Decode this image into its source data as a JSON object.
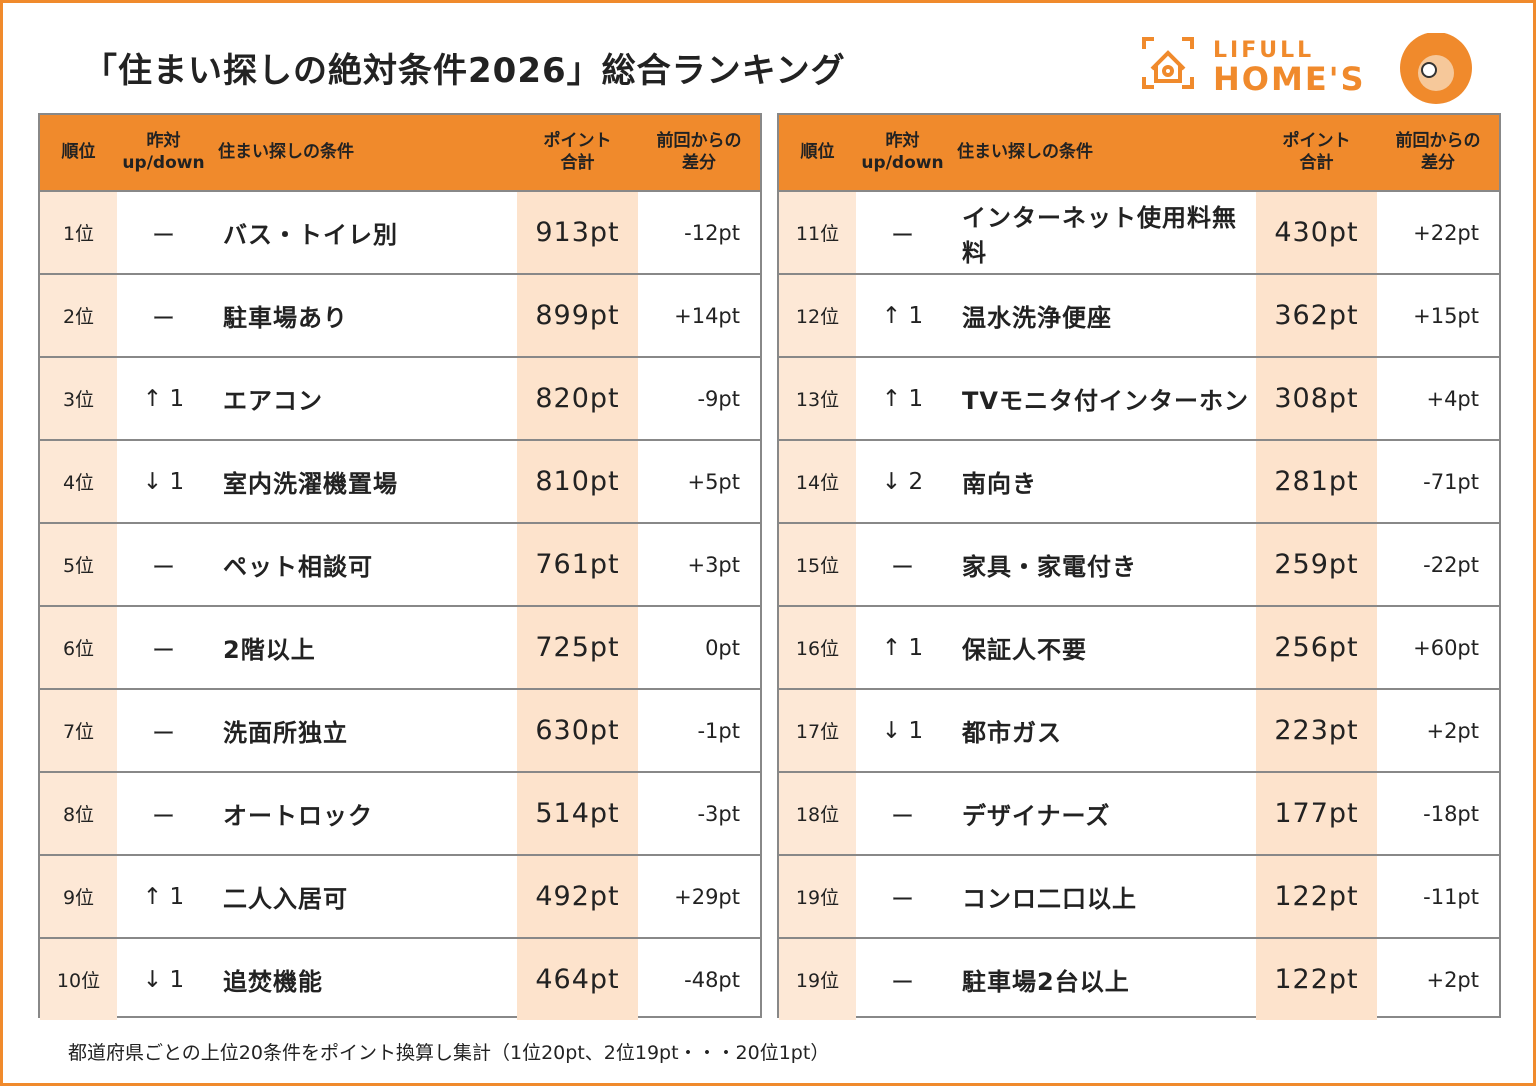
{
  "header": {
    "title": "「住まい探しの絶対条件2026」総合ランキング",
    "logo_top": "LIFULL",
    "logo_bottom": "HOME'S"
  },
  "columns": [
    "順位",
    "昨対\nup/down",
    "住まい探しの条件",
    "ポイント\n合計",
    "前回からの\n差分"
  ],
  "tables": [
    {
      "rows": [
        [
          "1位",
          "ー",
          "バス・トイレ別",
          "913pt",
          "-12pt"
        ],
        [
          "2位",
          "ー",
          "駐車場あり",
          "899pt",
          "+14pt"
        ],
        [
          "3位",
          "↑ 1",
          "エアコン",
          "820pt",
          "-9pt"
        ],
        [
          "4位",
          "↓ 1",
          "室内洗濯機置場",
          "810pt",
          "+5pt"
        ],
        [
          "5位",
          "ー",
          "ペット相談可",
          "761pt",
          "+3pt"
        ],
        [
          "6位",
          "ー",
          "2階以上",
          "725pt",
          "0pt"
        ],
        [
          "7位",
          "ー",
          "洗面所独立",
          "630pt",
          "-1pt"
        ],
        [
          "8位",
          "ー",
          "オートロック",
          "514pt",
          "-3pt"
        ],
        [
          "9位",
          "↑ 1",
          "二人入居可",
          "492pt",
          "+29pt"
        ],
        [
          "10位",
          "↓ 1",
          "追焚機能",
          "464pt",
          "-48pt"
        ]
      ]
    },
    {
      "rows": [
        [
          "11位",
          "ー",
          "インターネット使用料無料",
          "430pt",
          "+22pt"
        ],
        [
          "12位",
          "↑ 1",
          "温水洗浄便座",
          "362pt",
          "+15pt"
        ],
        [
          "13位",
          "↑ 1",
          "TVモニタ付インターホン",
          "308pt",
          "+4pt"
        ],
        [
          "14位",
          "↓ 2",
          "南向き",
          "281pt",
          "-71pt"
        ],
        [
          "15位",
          "ー",
          "家具・家電付き",
          "259pt",
          "-22pt"
        ],
        [
          "16位",
          "↑ 1",
          "保証人不要",
          "256pt",
          "+60pt"
        ],
        [
          "17位",
          "↓ 1",
          "都市ガス",
          "223pt",
          "+2pt"
        ],
        [
          "18位",
          "ー",
          "デザイナーズ",
          "177pt",
          "-18pt"
        ],
        [
          "19位",
          "ー",
          "コンロ二口以上",
          "122pt",
          "-11pt"
        ],
        [
          "19位",
          "ー",
          "駐車場2台以上",
          "122pt",
          "+2pt"
        ]
      ]
    }
  ],
  "footnote": "都道府県ごとの上位20条件をポイント換算し集計（1位20pt、2位19pt・・・20位1pt）"
}
